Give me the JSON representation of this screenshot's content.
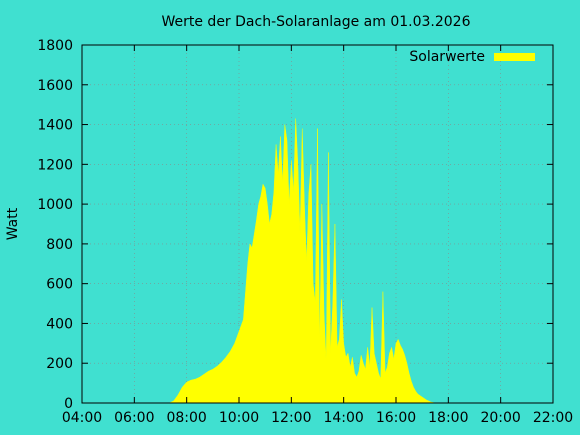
{
  "chart_data": {
    "type": "area",
    "title": "Werte der Dach-Solaranlage am 01.03.2026",
    "ylabel": "Watt",
    "xlabel": "",
    "ylim": [
      0,
      1800
    ],
    "xlim": [
      "04:00",
      "22:00"
    ],
    "x_ticks": [
      "04:00",
      "06:00",
      "08:00",
      "10:00",
      "12:00",
      "14:00",
      "16:00",
      "18:00",
      "20:00",
      "22:00"
    ],
    "y_ticks": [
      "0",
      "200",
      "400",
      "600",
      "800",
      "1000",
      "1200",
      "1400",
      "1600",
      "1800"
    ],
    "grid": true,
    "legend_position": "top-right",
    "colors": {
      "background": "#40e0d0",
      "series": "#ffff00"
    },
    "series": [
      {
        "name": "Solarwerte",
        "points": [
          [
            "07:20",
            0
          ],
          [
            "07:30",
            10
          ],
          [
            "07:40",
            40
          ],
          [
            "07:50",
            80
          ],
          [
            "08:00",
            105
          ],
          [
            "08:10",
            115
          ],
          [
            "08:20",
            120
          ],
          [
            "08:30",
            130
          ],
          [
            "08:40",
            145
          ],
          [
            "08:50",
            160
          ],
          [
            "09:00",
            170
          ],
          [
            "09:10",
            185
          ],
          [
            "09:20",
            205
          ],
          [
            "09:30",
            230
          ],
          [
            "09:40",
            260
          ],
          [
            "09:50",
            300
          ],
          [
            "10:00",
            360
          ],
          [
            "10:10",
            420
          ],
          [
            "10:15",
            560
          ],
          [
            "10:20",
            700
          ],
          [
            "10:25",
            800
          ],
          [
            "10:30",
            780
          ],
          [
            "10:35",
            850
          ],
          [
            "10:40",
            920
          ],
          [
            "10:45",
            1000
          ],
          [
            "10:50",
            1040
          ],
          [
            "10:55",
            1100
          ],
          [
            "11:00",
            1080
          ],
          [
            "11:05",
            1000
          ],
          [
            "11:10",
            900
          ],
          [
            "11:15",
            950
          ],
          [
            "11:20",
            1060
          ],
          [
            "11:25",
            1300
          ],
          [
            "11:30",
            1150
          ],
          [
            "11:35",
            1340
          ],
          [
            "11:40",
            1100
          ],
          [
            "11:45",
            1400
          ],
          [
            "11:50",
            1320
          ],
          [
            "11:55",
            1000
          ],
          [
            "12:00",
            1220
          ],
          [
            "12:05",
            1060
          ],
          [
            "12:10",
            1430
          ],
          [
            "12:15",
            1200
          ],
          [
            "12:20",
            850
          ],
          [
            "12:25",
            1380
          ],
          [
            "12:30",
            1000
          ],
          [
            "12:35",
            700
          ],
          [
            "12:40",
            1050
          ],
          [
            "12:45",
            1200
          ],
          [
            "12:50",
            600
          ],
          [
            "12:55",
            500
          ],
          [
            "13:00",
            1380
          ],
          [
            "13:05",
            300
          ],
          [
            "13:10",
            1000
          ],
          [
            "13:15",
            450
          ],
          [
            "13:20",
            200
          ],
          [
            "13:25",
            1260
          ],
          [
            "13:30",
            250
          ],
          [
            "13:35",
            500
          ],
          [
            "13:40",
            900
          ],
          [
            "13:45",
            280
          ],
          [
            "13:50",
            320
          ],
          [
            "13:55",
            520
          ],
          [
            "14:00",
            300
          ],
          [
            "14:05",
            230
          ],
          [
            "14:10",
            250
          ],
          [
            "14:15",
            180
          ],
          [
            "14:20",
            230
          ],
          [
            "14:25",
            150
          ],
          [
            "14:30",
            130
          ],
          [
            "14:35",
            160
          ],
          [
            "14:40",
            240
          ],
          [
            "14:45",
            200
          ],
          [
            "14:50",
            170
          ],
          [
            "14:55",
            280
          ],
          [
            "15:00",
            180
          ],
          [
            "15:05",
            480
          ],
          [
            "15:10",
            250
          ],
          [
            "15:15",
            200
          ],
          [
            "15:20",
            150
          ],
          [
            "15:25",
            120
          ],
          [
            "15:30",
            560
          ],
          [
            "15:35",
            150
          ],
          [
            "15:40",
            180
          ],
          [
            "15:45",
            250
          ],
          [
            "15:50",
            280
          ],
          [
            "15:55",
            220
          ],
          [
            "16:00",
            300
          ],
          [
            "16:05",
            320
          ],
          [
            "16:10",
            290
          ],
          [
            "16:15",
            270
          ],
          [
            "16:20",
            240
          ],
          [
            "16:25",
            200
          ],
          [
            "16:30",
            150
          ],
          [
            "16:35",
            110
          ],
          [
            "16:40",
            80
          ],
          [
            "16:45",
            60
          ],
          [
            "16:50",
            45
          ],
          [
            "17:00",
            30
          ],
          [
            "17:10",
            15
          ],
          [
            "17:20",
            5
          ],
          [
            "17:30",
            0
          ]
        ]
      }
    ]
  }
}
